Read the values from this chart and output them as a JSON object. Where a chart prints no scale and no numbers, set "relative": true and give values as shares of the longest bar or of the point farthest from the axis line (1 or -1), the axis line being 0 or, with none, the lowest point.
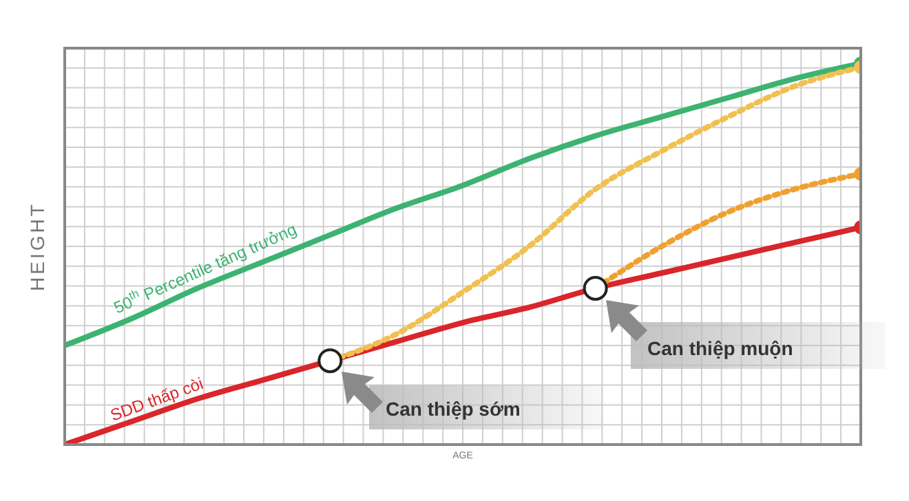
{
  "chart_data": {
    "type": "line",
    "relative": true,
    "xlabel": "AGE",
    "ylabel": "HEIGHT",
    "grid": true,
    "categories": [
      null,
      null,
      null,
      null,
      null,
      null,
      null,
      null,
      null,
      null,
      null,
      null,
      null
    ],
    "series": [
      {
        "name": "50$^{th}$ Percentile tăng trưởng",
        "color": "#3cb371",
        "values": [
          0.26,
          0.33,
          0.41,
          0.48,
          0.55,
          0.62,
          0.68,
          0.75,
          0.81,
          0.86,
          0.91,
          0.96,
          1
        ]
      },
      {
        "name": "SDD thấp còi",
        "color": "#d9262b",
        "values": [
          0,
          0.06,
          0.12,
          0.17,
          0.22,
          0.27,
          0.32,
          0.36,
          0.41,
          0.45,
          0.49,
          0.53,
          0.57
        ]
      },
      {
        "color": "#f0c050",
        "line_style": "dotted",
        "values": [
          null,
          null,
          null,
          null,
          0.22,
          0.29,
          0.4,
          0.52,
          0.67,
          0.77,
          0.86,
          0.94,
          0.99
        ]
      },
      {
        "color": "#f0a030",
        "line_style": "dotted",
        "values": [
          null,
          null,
          null,
          null,
          null,
          null,
          null,
          null,
          0.41,
          0.52,
          0.61,
          0.67,
          0.71
        ]
      }
    ],
    "annotations": [
      "Can thiệp sớm",
      "Can thiệp muộn"
    ]
  }
}
